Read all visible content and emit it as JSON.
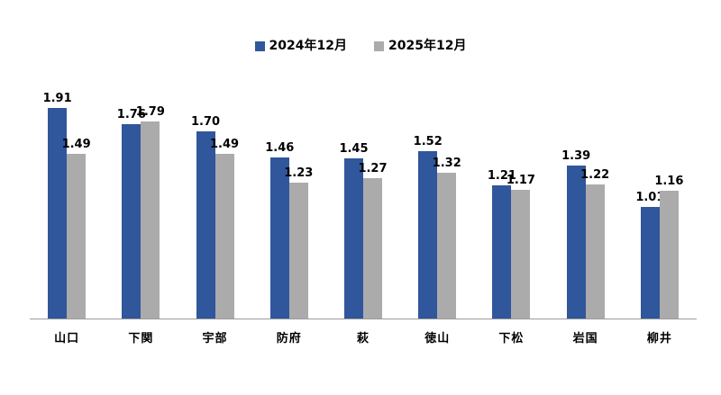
{
  "chart_data": {
    "type": "bar",
    "title": "",
    "xlabel": "",
    "ylabel": "",
    "categories": [
      "山口",
      "下関",
      "宇部",
      "防府",
      "萩",
      "徳山",
      "下松",
      "岩国",
      "柳井"
    ],
    "series": [
      {
        "name": "2024年12月",
        "color": "#30569B",
        "values": [
          1.91,
          1.76,
          1.7,
          1.46,
          1.45,
          1.52,
          1.21,
          1.39,
          1.01
        ]
      },
      {
        "name": "2025年12月",
        "color": "#ABABAB",
        "values": [
          1.49,
          1.79,
          1.49,
          1.23,
          1.27,
          1.32,
          1.17,
          1.22,
          1.16
        ]
      }
    ],
    "ylim": [
      0,
      2.0
    ],
    "grid": false,
    "legend_position": "top",
    "axis_line_color": "#9B9B9B",
    "label_color": "#000000"
  }
}
